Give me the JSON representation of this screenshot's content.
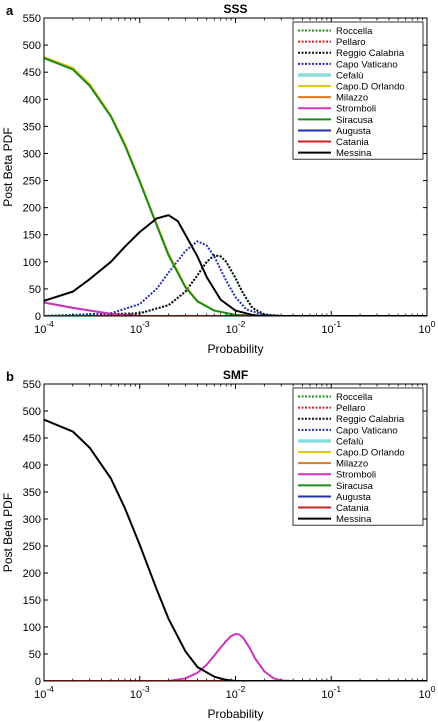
{
  "chart_data": [
    {
      "type": "line",
      "panel_label": "a",
      "title": "SSS",
      "xlabel": "Probability",
      "ylabel": "Post Beta PDF",
      "xscale": "log",
      "xlim": [
        0.0001,
        1
      ],
      "ylim": [
        0,
        550
      ],
      "xtick_exponents": [
        "-4",
        "-3",
        "-2",
        "-1",
        "0"
      ],
      "xtick_base": "10",
      "yticks": [
        "0",
        "50",
        "100",
        "150",
        "200",
        "250",
        "300",
        "350",
        "400",
        "450",
        "500",
        "550"
      ],
      "grid": false,
      "legend": "top-right",
      "series": [
        {
          "name": "Roccella",
          "color": "#1a8a1a",
          "dash": "dotted",
          "x": [
            0.0001,
            0.001,
            0.002,
            0.003,
            0.004,
            0.005,
            0.006,
            0.007,
            0.008,
            0.01,
            0.012,
            0.015,
            0.02,
            0.03,
            0.1,
            1
          ],
          "y": [
            0,
            5,
            20,
            45,
            75,
            100,
            112,
            110,
            100,
            70,
            42,
            15,
            3,
            0,
            0,
            0
          ]
        },
        {
          "name": "Pellaro",
          "color": "#cc2222",
          "dash": "dotted",
          "x": [
            0.0001,
            0.0002,
            0.0005,
            0.001,
            0.01,
            1
          ],
          "y": [
            25,
            15,
            4,
            0,
            0,
            0
          ]
        },
        {
          "name": "Reggio Calabria",
          "color": "#111111",
          "dash": "dotted",
          "x": [
            0.0001,
            0.001,
            0.002,
            0.003,
            0.004,
            0.005,
            0.006,
            0.007,
            0.008,
            0.01,
            0.012,
            0.015,
            0.02,
            0.03,
            0.1,
            1
          ],
          "y": [
            0,
            5,
            20,
            45,
            75,
            100,
            112,
            110,
            100,
            70,
            42,
            15,
            3,
            0,
            0,
            0
          ]
        },
        {
          "name": "Capo Vaticano",
          "color": "#2233aa",
          "dash": "dotted",
          "x": [
            0.0001,
            0.0005,
            0.001,
            0.0015,
            0.002,
            0.003,
            0.004,
            0.005,
            0.006,
            0.008,
            0.01,
            0.013,
            0.02,
            0.03,
            0.1,
            1
          ],
          "y": [
            0,
            5,
            22,
            50,
            80,
            120,
            138,
            130,
            110,
            65,
            35,
            12,
            2,
            0,
            0,
            0
          ]
        },
        {
          "name": "Cefalù",
          "color": "#88dddd",
          "dash": "solid",
          "x": [
            0.0001,
            0.001,
            0.01,
            1
          ],
          "y": [
            0,
            0,
            0,
            0
          ]
        },
        {
          "name": "Capo.D Orlando",
          "color": "#e6c619",
          "dash": "solid",
          "x": [
            0.0001,
            0.0002,
            0.0003,
            0.0005,
            0.0007,
            0.001,
            0.0015,
            0.002,
            0.003,
            0.004,
            0.006,
            0.01,
            0.02,
            0.03,
            0.1,
            1
          ],
          "y": [
            478,
            458,
            428,
            370,
            318,
            250,
            170,
            115,
            55,
            28,
            10,
            2,
            0,
            0,
            0,
            0
          ]
        },
        {
          "name": "Milazzo",
          "color": "#e07820",
          "dash": "solid",
          "x": [
            0.0001,
            0.001,
            0.01,
            1
          ],
          "y": [
            0,
            0,
            0,
            0
          ]
        },
        {
          "name": "Stromboli",
          "color": "#cc33bb",
          "dash": "solid",
          "x": [
            0.0001,
            0.0002,
            0.0005,
            0.001,
            0.01,
            1
          ],
          "y": [
            25,
            15,
            4,
            0,
            0,
            0
          ]
        },
        {
          "name": "Siracusa",
          "color": "#1a8a1a",
          "dash": "solid",
          "x": [
            0.0001,
            0.0002,
            0.0003,
            0.0005,
            0.0007,
            0.001,
            0.0015,
            0.002,
            0.003,
            0.004,
            0.006,
            0.01,
            0.02,
            0.03,
            0.1,
            1
          ],
          "y": [
            476,
            455,
            425,
            368,
            315,
            248,
            168,
            112,
            53,
            27,
            10,
            2,
            0,
            0,
            0,
            0
          ]
        },
        {
          "name": "Augusta",
          "color": "#2233aa",
          "dash": "solid",
          "x": [
            0.0001,
            0.001,
            0.01,
            1
          ],
          "y": [
            0,
            0,
            0,
            0
          ]
        },
        {
          "name": "Catania",
          "color": "#cc2222",
          "dash": "solid",
          "x": [
            0.0001,
            0.001,
            0.01,
            1
          ],
          "y": [
            0,
            0,
            0,
            0
          ]
        },
        {
          "name": "Messina",
          "color": "#000000",
          "dash": "solid",
          "x": [
            0.0001,
            0.0002,
            0.0003,
            0.0005,
            0.0007,
            0.001,
            0.0015,
            0.002,
            0.0025,
            0.003,
            0.004,
            0.005,
            0.007,
            0.01,
            0.015,
            0.02,
            0.03,
            0.1,
            1
          ],
          "y": [
            28,
            45,
            68,
            100,
            128,
            155,
            180,
            186,
            175,
            150,
            110,
            72,
            30,
            10,
            2,
            0,
            0,
            0,
            0
          ]
        }
      ]
    },
    {
      "type": "line",
      "panel_label": "b",
      "title": "SMF",
      "xlabel": "Probability",
      "ylabel": "Post Beta PDF",
      "xscale": "log",
      "xlim": [
        0.0001,
        1
      ],
      "ylim": [
        0,
        550
      ],
      "xtick_exponents": [
        "-4",
        "-3",
        "-2",
        "-1",
        "0"
      ],
      "xtick_base": "10",
      "yticks": [
        "0",
        "50",
        "100",
        "150",
        "200",
        "250",
        "300",
        "350",
        "400",
        "450",
        "500",
        "550"
      ],
      "grid": false,
      "legend": "top-right",
      "series": [
        {
          "name": "Roccella",
          "color": "#1a8a1a",
          "dash": "dotted",
          "x": [
            0.0001,
            0.01,
            1
          ],
          "y": [
            0,
            0,
            0
          ]
        },
        {
          "name": "Pellaro",
          "color": "#cc2222",
          "dash": "dotted",
          "x": [
            0.0001,
            0.01,
            1
          ],
          "y": [
            0,
            0,
            0
          ]
        },
        {
          "name": "Reggio Calabria",
          "color": "#111111",
          "dash": "dotted",
          "x": [
            0.0001,
            0.01,
            1
          ],
          "y": [
            0,
            0,
            0
          ]
        },
        {
          "name": "Capo Vaticano",
          "color": "#2233aa",
          "dash": "dotted",
          "x": [
            0.0001,
            0.01,
            1
          ],
          "y": [
            0,
            0,
            0
          ]
        },
        {
          "name": "Cefalù",
          "color": "#88dddd",
          "dash": "solid",
          "x": [
            0.0001,
            0.01,
            1
          ],
          "y": [
            0,
            0,
            0
          ]
        },
        {
          "name": "Capo.D Orlando",
          "color": "#e6c619",
          "dash": "solid",
          "x": [
            0.0001,
            0.01,
            1
          ],
          "y": [
            0,
            0,
            0
          ]
        },
        {
          "name": "Milazzo",
          "color": "#e07820",
          "dash": "solid",
          "x": [
            0.0001,
            0.01,
            1
          ],
          "y": [
            0,
            0,
            0
          ]
        },
        {
          "name": "Stromboli",
          "color": "#cc33bb",
          "dash": "solid",
          "x": [
            0.0001,
            0.002,
            0.003,
            0.004,
            0.005,
            0.006,
            0.007,
            0.008,
            0.009,
            0.01,
            0.011,
            0.012,
            0.014,
            0.016,
            0.02,
            0.025,
            0.03,
            0.04,
            0.1,
            1
          ],
          "y": [
            0,
            0,
            5,
            15,
            30,
            47,
            62,
            74,
            83,
            87,
            86,
            80,
            62,
            42,
            18,
            5,
            1,
            0,
            0,
            0
          ]
        },
        {
          "name": "Siracusa",
          "color": "#1a8a1a",
          "dash": "solid",
          "x": [
            0.0001,
            0.01,
            1
          ],
          "y": [
            0,
            0,
            0
          ]
        },
        {
          "name": "Augusta",
          "color": "#2233aa",
          "dash": "solid",
          "x": [
            0.0001,
            0.01,
            1
          ],
          "y": [
            0,
            0,
            0
          ]
        },
        {
          "name": "Catania",
          "color": "#cc2222",
          "dash": "solid",
          "x": [
            0.0001,
            0.01,
            1
          ],
          "y": [
            0,
            0,
            0
          ]
        },
        {
          "name": "Messina",
          "color": "#000000",
          "dash": "solid",
          "x": [
            0.0001,
            0.0002,
            0.0003,
            0.0005,
            0.0007,
            0.001,
            0.0015,
            0.002,
            0.003,
            0.004,
            0.006,
            0.008,
            0.01,
            0.02,
            0.1,
            1
          ],
          "y": [
            484,
            462,
            432,
            375,
            320,
            252,
            170,
            115,
            55,
            26,
            8,
            2,
            0,
            0,
            0,
            0
          ]
        }
      ]
    }
  ]
}
